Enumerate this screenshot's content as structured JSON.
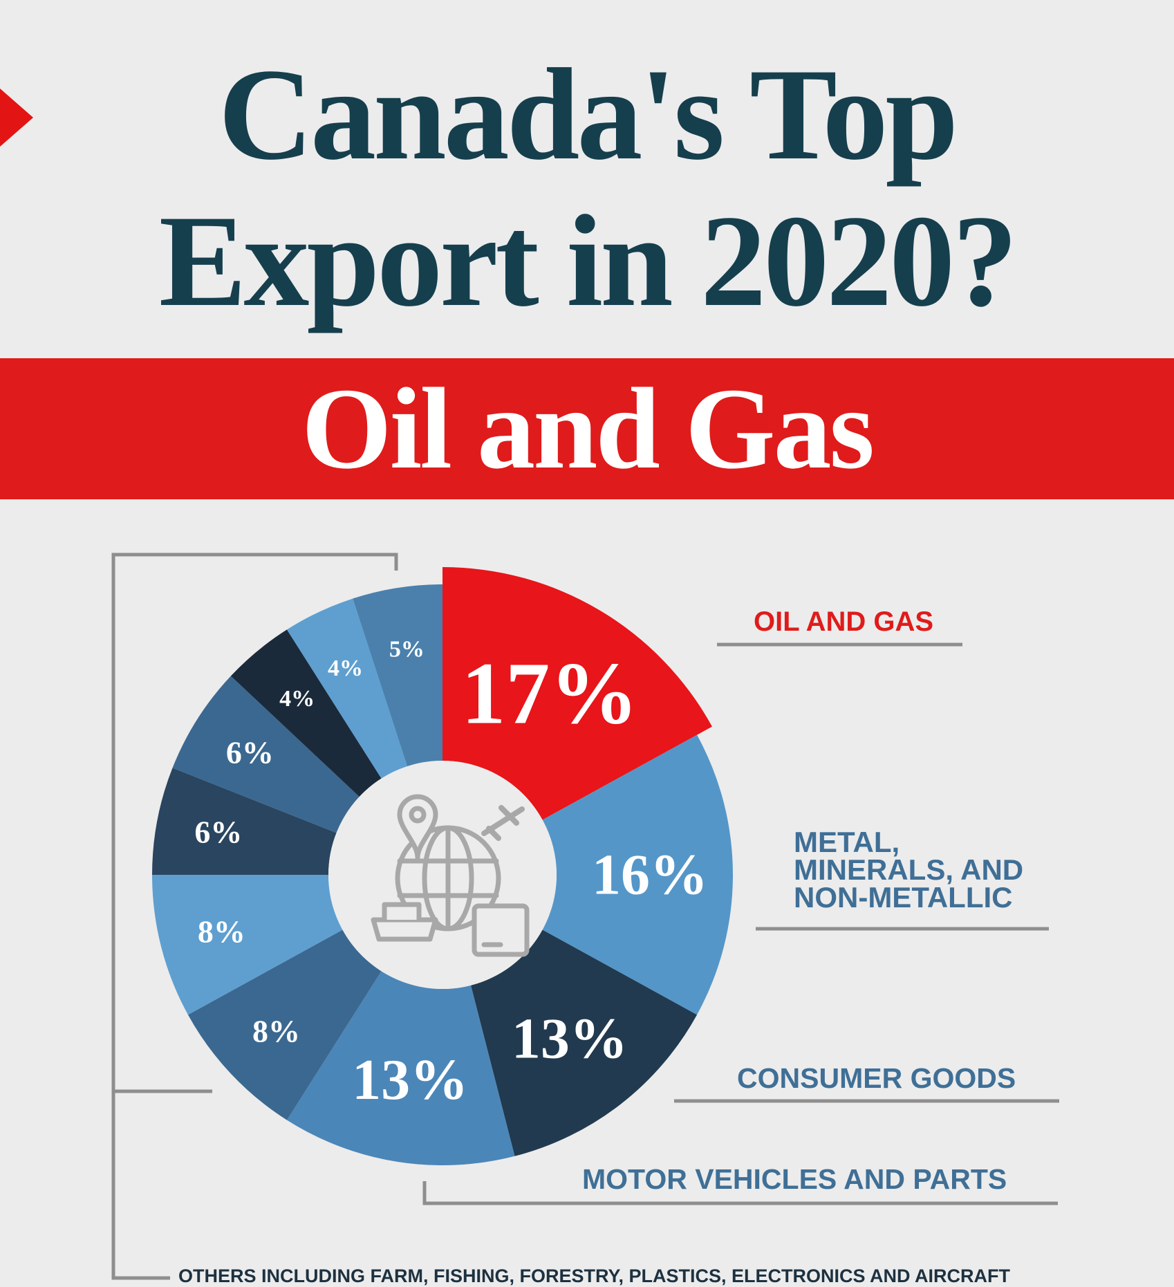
{
  "title": {
    "line1": "Canada's Top",
    "line2": "Export in 2020?"
  },
  "banner": {
    "text": "Oil and Gas"
  },
  "colors": {
    "title": "#163f4e",
    "accent_red": "#e01b1b",
    "dark_navy": "#203548",
    "mid_blue": "#3f6f96",
    "light_blue": "#5e9fd0",
    "bracket_gray": "#8e8e8e"
  },
  "chart_data": {
    "type": "pie",
    "title": "Canada's Top Export in 2020?",
    "subtitle": "Oil and Gas",
    "donut": true,
    "center_icon": "globe-trade-icon",
    "slices": [
      {
        "label": "17%",
        "value": 17,
        "category": "OIL AND GAS",
        "color": "#e8151a",
        "exploded": true
      },
      {
        "label": "16%",
        "value": 16,
        "category": "METAL, MINERALS, AND NON-METALLIC",
        "color": "#5596c8"
      },
      {
        "label": "13%",
        "value": 13,
        "category": "CONSUMER GOODS",
        "color": "#213a4f"
      },
      {
        "label": "13%",
        "value": 13,
        "category": "MOTOR VEHICLES AND PARTS",
        "color": "#4b86b8"
      },
      {
        "label": "8%",
        "value": 8,
        "category": "OTHERS",
        "color": "#3b6890"
      },
      {
        "label": "8%",
        "value": 8,
        "category": "OTHERS",
        "color": "#5e9fd0"
      },
      {
        "label": "6%",
        "value": 6,
        "category": "OTHERS",
        "color": "#2a4560"
      },
      {
        "label": "6%",
        "value": 6,
        "category": "OTHERS",
        "color": "#3b6890"
      },
      {
        "label": "4%",
        "value": 4,
        "category": "OTHERS",
        "color": "#1b2a3a"
      },
      {
        "label": "4%",
        "value": 4,
        "category": "OTHERS",
        "color": "#5e9fd0"
      },
      {
        "label": "5%",
        "value": 5,
        "category": "OTHERS",
        "color": "#4b80ad"
      }
    ],
    "categories": [
      {
        "name": "oil-gas",
        "lines": [
          "OIL AND GAS"
        ],
        "color": "#e01b1b"
      },
      {
        "name": "metal",
        "lines": [
          "METAL,",
          "MINERALS, AND",
          "NON-METALLIC"
        ],
        "color": "#3f6f96"
      },
      {
        "name": "consumer",
        "lines": [
          "CONSUMER GOODS"
        ],
        "color": "#3f6f96"
      },
      {
        "name": "motor",
        "lines": [
          "MOTOR VEHICLES AND PARTS"
        ],
        "color": "#3f6f96"
      }
    ],
    "others_label": "OTHERS INCLUDING FARM, FISHING, FORESTRY, PLASTICS, ELECTRONICS AND AIRCRAFT"
  }
}
